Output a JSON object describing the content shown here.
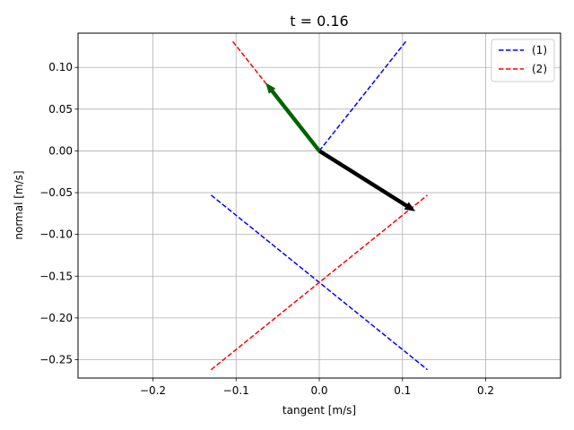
{
  "chart_data": {
    "type": "line",
    "title": "t = 0.16",
    "xlabel": "tangent [m/s]",
    "ylabel": "normal [m/s]",
    "xlim": [
      -0.29,
      0.29
    ],
    "ylim": [
      -0.272,
      0.141
    ],
    "xticks": [
      -0.2,
      -0.1,
      0.0,
      0.1,
      0.2
    ],
    "xtick_labels": [
      "−0.2",
      "−0.1",
      "0.0",
      "0.1",
      "0.2"
    ],
    "yticks": [
      0.1,
      0.05,
      0.0,
      -0.05,
      -0.1,
      -0.15,
      -0.2,
      -0.25
    ],
    "ytick_labels": [
      "0.10",
      "0.05",
      "0.00",
      "−0.05",
      "−0.10",
      "−0.15",
      "−0.20",
      "−0.25"
    ],
    "grid": true,
    "legend_position": "top-right",
    "series": [
      {
        "name": "(1)",
        "color": "#0000ff",
        "style": "dashed",
        "segments": [
          [
            [
              0.0,
              0.0
            ],
            [
              0.104,
              0.131
            ]
          ],
          [
            [
              -0.13,
              -0.053
            ],
            [
              0.13,
              -0.262
            ]
          ]
        ]
      },
      {
        "name": "(2)",
        "color": "#ff0000",
        "style": "dashed",
        "segments": [
          [
            [
              0.0,
              0.0
            ],
            [
              -0.104,
              0.131
            ]
          ],
          [
            [
              -0.13,
              -0.262
            ],
            [
              0.13,
              -0.053
            ]
          ]
        ]
      }
    ],
    "vectors": [
      {
        "from": [
          0.0,
          0.0
        ],
        "to": [
          0.115,
          -0.072
        ],
        "color": "#000000"
      },
      {
        "from": [
          0.0,
          0.0
        ],
        "to": [
          -0.064,
          0.081
        ],
        "color": "#006400"
      }
    ]
  }
}
